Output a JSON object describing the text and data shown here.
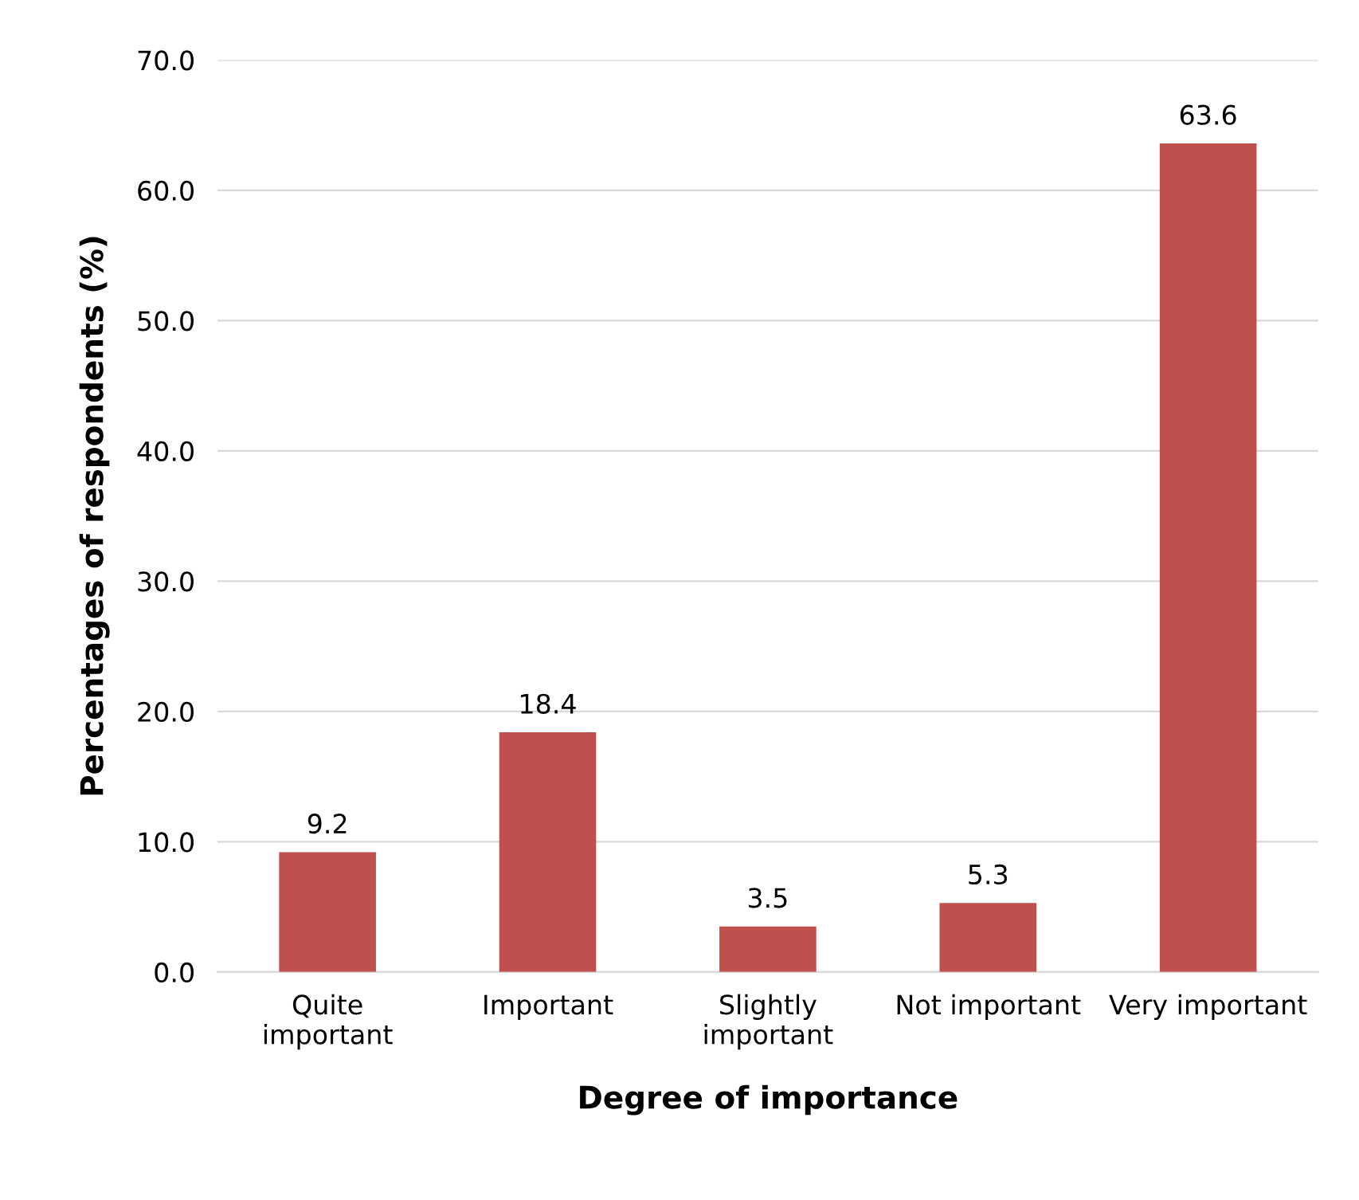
{
  "chart_data": {
    "type": "bar",
    "xlabel": "Degree of importance",
    "ylabel": "Percentages of respondents (%)",
    "categories": [
      "Quite\nimportant",
      "Important",
      "Slightly\nimportant",
      "Not important",
      "Very important"
    ],
    "values": [
      9.2,
      18.4,
      3.5,
      5.3,
      63.6
    ],
    "color": "#c0504d",
    "ylim": [
      0,
      70
    ],
    "yticks": [
      {
        "value": 0,
        "label": "0.0"
      },
      {
        "value": 10,
        "label": "10.0"
      },
      {
        "value": 20,
        "label": "20.0"
      },
      {
        "value": 30,
        "label": "30.0"
      },
      {
        "value": 40,
        "label": "40.0"
      },
      {
        "value": 50,
        "label": "50.0"
      },
      {
        "value": 60,
        "label": "60.0"
      },
      {
        "value": 70,
        "label": "70.0"
      }
    ],
    "grid": "y",
    "data_labels": true,
    "legend": false
  }
}
